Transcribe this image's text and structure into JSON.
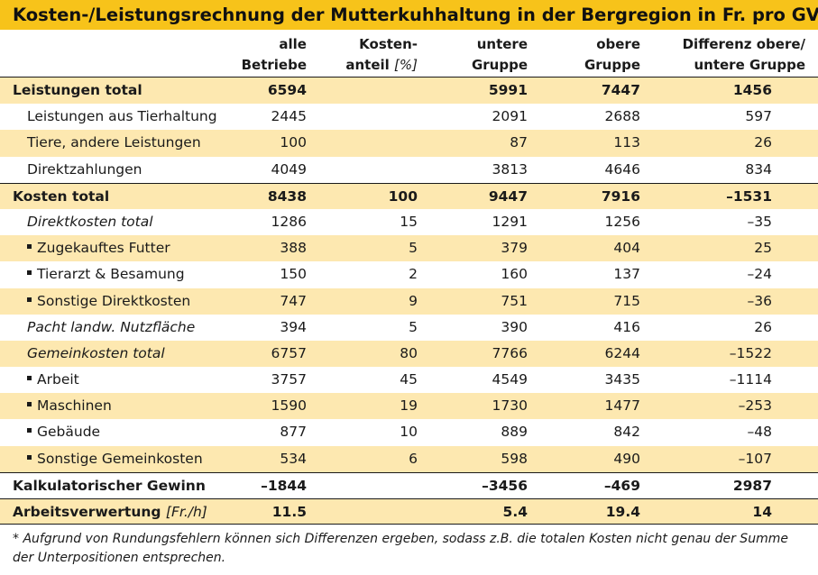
{
  "title": "Kosten-/Leistungsrechnung der Mutterkuhhaltung in der Bergregion in Fr. pro GVE",
  "header": {
    "col1": [
      "alle",
      "Betriebe"
    ],
    "col2": [
      "Kosten-",
      "anteil",
      "[%]"
    ],
    "col3": [
      "untere",
      "Gruppe"
    ],
    "col4": [
      "obere",
      "Gruppe"
    ],
    "col5": [
      "Differenz obere/",
      "untere Gruppe"
    ]
  },
  "rows": [
    {
      "label": "Leistungen total",
      "v": [
        "6594",
        "",
        "5991",
        "7447",
        "1456"
      ]
    },
    {
      "label": "Leistungen aus Tierhaltung",
      "v": [
        "2445",
        "",
        "2091",
        "2688",
        "597"
      ]
    },
    {
      "label": "Tiere, andere Leistungen",
      "v": [
        "100",
        "",
        "87",
        "113",
        "26"
      ]
    },
    {
      "label": "Direktzahlungen",
      "v": [
        "4049",
        "",
        "3813",
        "4646",
        "834"
      ]
    },
    {
      "label": "Kosten total",
      "v": [
        "8438",
        "100",
        "9447",
        "7916",
        "–1531"
      ]
    },
    {
      "label": "Direktkosten total",
      "v": [
        "1286",
        "15",
        "1291",
        "1256",
        "–35"
      ]
    },
    {
      "label": "Zugekauftes Futter",
      "v": [
        "388",
        "5",
        "379",
        "404",
        "25"
      ]
    },
    {
      "label": "Tierarzt & Besamung",
      "v": [
        "150",
        "2",
        "160",
        "137",
        "–24"
      ]
    },
    {
      "label": "Sonstige Direktkosten",
      "v": [
        "747",
        "9",
        "751",
        "715",
        "–36"
      ]
    },
    {
      "label": "Pacht landw. Nutzfläche",
      "v": [
        "394",
        "5",
        "390",
        "416",
        "26"
      ]
    },
    {
      "label": "Gemeinkosten total",
      "v": [
        "6757",
        "80",
        "7766",
        "6244",
        "–1522"
      ]
    },
    {
      "label": "Arbeit",
      "v": [
        "3757",
        "45",
        "4549",
        "3435",
        "–1114"
      ]
    },
    {
      "label": "Maschinen",
      "v": [
        "1590",
        "19",
        "1730",
        "1477",
        "–253"
      ]
    },
    {
      "label": "Gebäude",
      "v": [
        "877",
        "10",
        "889",
        "842",
        "–48"
      ]
    },
    {
      "label": "Sonstige Gemeinkosten",
      "v": [
        "534",
        "6",
        "598",
        "490",
        "–107"
      ]
    },
    {
      "label": "Kalkulatorischer Gewinn",
      "v": [
        "–1844",
        "",
        "–3456",
        "–469",
        "2987"
      ]
    },
    {
      "label": "Arbeitsverwertung",
      "unit": "[Fr./h]",
      "v": [
        "11.5",
        "",
        "5.4",
        "19.4",
        "14"
      ]
    }
  ],
  "footnote": "* Aufgrund von Rundungsfehlern können sich Differenzen ergeben, sodass z.B. die totalen Kosten nicht genau der Summe der Unterpositionen entsprechen."
}
